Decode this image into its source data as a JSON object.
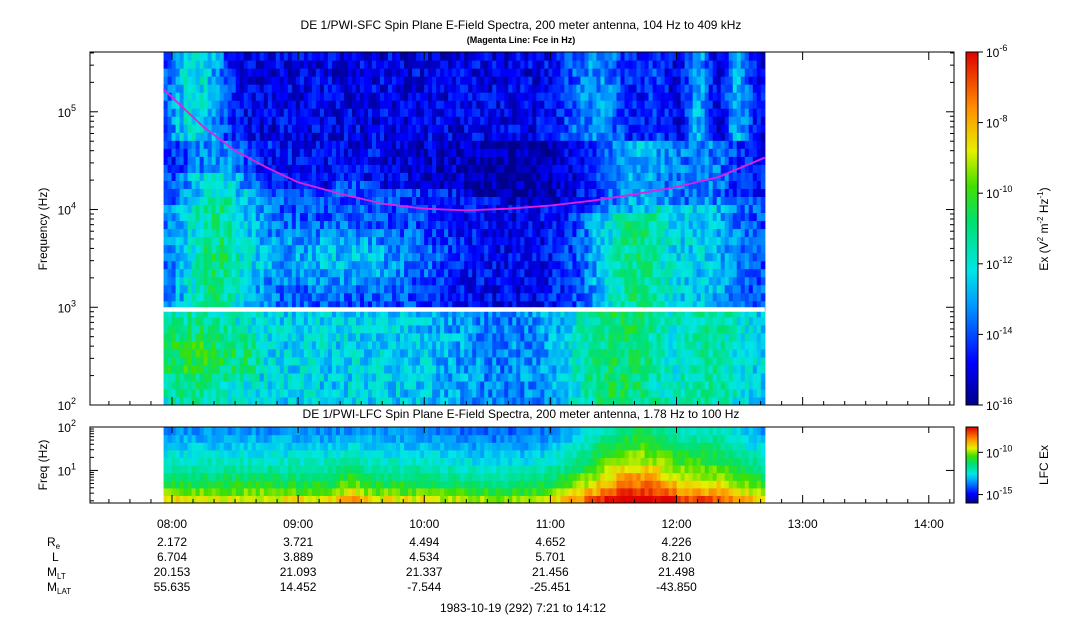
{
  "chart_data": [
    {
      "type": "heatmap",
      "title": "DE 1/PWI-SFC  Spin Plane E-Field Spectra, 200 meter antenna, 104 Hz to 409 kHz",
      "subtitle": "(Magenta Line: Fce in Hz)",
      "ylabel": "Frequency (Hz)",
      "yscale": "log",
      "ylim": [
        100,
        409000
      ],
      "xlim": [
        "07:21",
        "14:12"
      ],
      "data_range": [
        "07:56",
        "12:42"
      ],
      "yticks": [
        {
          "base": "10",
          "exp": "2"
        },
        {
          "base": "10",
          "exp": "3"
        },
        {
          "base": "10",
          "exp": "4"
        },
        {
          "base": "10",
          "exp": "5"
        }
      ],
      "gap_hz": [
        900,
        1000
      ],
      "colorbar": {
        "label_parts": [
          "Ex (V",
          "2",
          " m",
          "-2",
          " Hz",
          "-1",
          ")"
        ],
        "scale": "log",
        "range": [
          1e-16,
          1e-06
        ],
        "ticks": [
          {
            "base": "10",
            "exp": "-6"
          },
          {
            "base": "10",
            "exp": "-8"
          },
          {
            "base": "10",
            "exp": "-10"
          },
          {
            "base": "10",
            "exp": "-12"
          },
          {
            "base": "10",
            "exp": "-14"
          },
          {
            "base": "10",
            "exp": "-16"
          }
        ]
      },
      "fce_line": {
        "name": "Fce in Hz",
        "color": "#e020e0",
        "points": [
          {
            "time": "07:56",
            "hz": 170000
          },
          {
            "time": "08:15",
            "hz": 70000
          },
          {
            "time": "08:30",
            "hz": 40000
          },
          {
            "time": "08:45",
            "hz": 27000
          },
          {
            "time": "09:00",
            "hz": 19000
          },
          {
            "time": "09:20",
            "hz": 14500
          },
          {
            "time": "09:40",
            "hz": 11500
          },
          {
            "time": "10:00",
            "hz": 10200
          },
          {
            "time": "10:20",
            "hz": 9800
          },
          {
            "time": "10:40",
            "hz": 10200
          },
          {
            "time": "11:00",
            "hz": 11000
          },
          {
            "time": "11:20",
            "hz": 12300
          },
          {
            "time": "11:40",
            "hz": 14300
          },
          {
            "time": "12:00",
            "hz": 17000
          },
          {
            "time": "12:20",
            "hz": 21500
          },
          {
            "time": "12:42",
            "hz": 34000
          }
        ]
      }
    },
    {
      "type": "heatmap",
      "title": "DE 1/PWI-LFC  Spin Plane E-Field Spectra, 200 meter antenna, 1.78 Hz to 100 Hz",
      "ylabel": "Freq (Hz)",
      "yscale": "log",
      "ylim": [
        1.78,
        100
      ],
      "yticks": [
        {
          "base": "10",
          "exp": "1"
        },
        {
          "base": "10",
          "exp": "2"
        }
      ],
      "colorbar": {
        "label": "LFC Ex",
        "scale": "log",
        "range": [
          1e-16,
          1e-07
        ],
        "ticks": [
          {
            "base": "10",
            "exp": "-10"
          },
          {
            "base": "10",
            "exp": "-15"
          }
        ]
      }
    }
  ],
  "x_axis": {
    "ticks": [
      "08:00",
      "09:00",
      "10:00",
      "11:00",
      "12:00",
      "13:00",
      "14:00"
    ],
    "date_line": "1983-10-19 (292) 7:21 to 14:12"
  },
  "ephemeris": [
    {
      "label": "R",
      "sub": "e",
      "values": [
        "2.172",
        "3.721",
        "4.494",
        "4.652",
        "4.226"
      ]
    },
    {
      "label": "L",
      "sub": "",
      "values": [
        "6.704",
        "3.889",
        "4.534",
        "5.701",
        "8.210"
      ]
    },
    {
      "label": "M",
      "sub": "LT",
      "values": [
        "20.153",
        "21.093",
        "21.337",
        "21.456",
        "21.498"
      ]
    },
    {
      "label": "M",
      "sub": "LAT",
      "values": [
        "55.635",
        "14.452",
        "-7.544",
        "-25.451",
        "-43.850"
      ]
    }
  ]
}
